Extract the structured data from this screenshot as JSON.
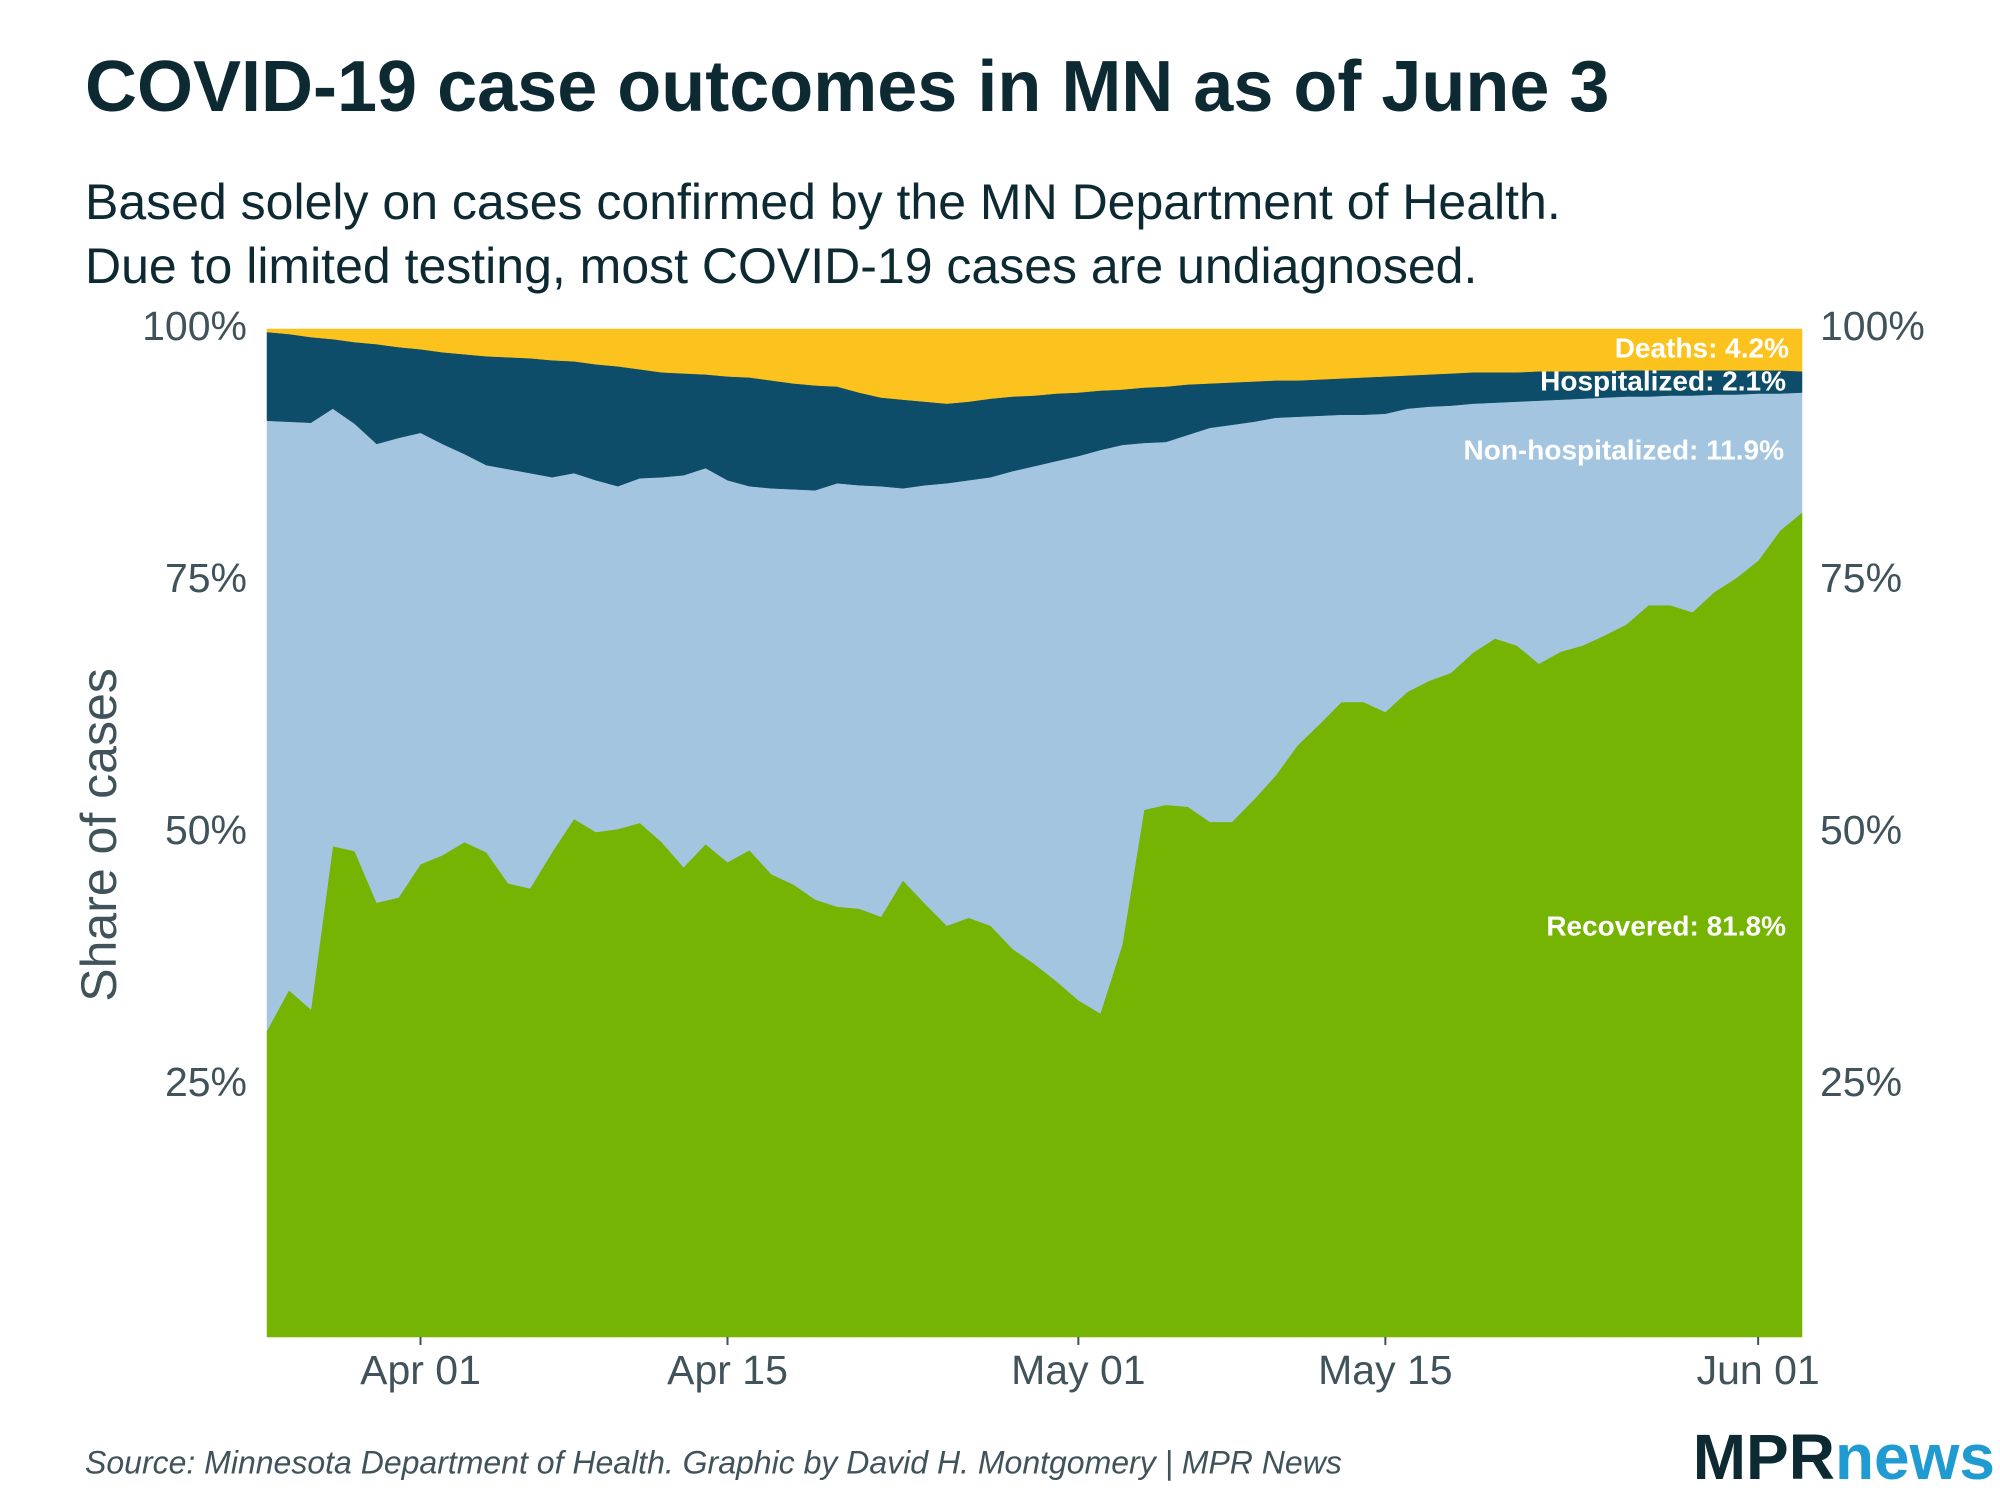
{
  "chart_data": {
    "type": "stacked-area",
    "title": "COVID-19 case outcomes in MN as of June 3",
    "subtitle": [
      "Based solely on cases confirmed by the MN Department of Health.",
      "Due to limited testing, most COVID-19 cases are undiagnosed."
    ],
    "y_label": "Share of cases",
    "source": "Source: Minnesota Department of Health. Graphic by David H. Montgomery | MPR News",
    "logo": [
      "MPR",
      "news"
    ],
    "categories": [
      "Mar 25",
      "Mar 26",
      "Mar 27",
      "Mar 28",
      "Mar 29",
      "Mar 30",
      "Mar 31",
      "Apr 01",
      "Apr 02",
      "Apr 03",
      "Apr 04",
      "Apr 05",
      "Apr 06",
      "Apr 07",
      "Apr 08",
      "Apr 09",
      "Apr 10",
      "Apr 11",
      "Apr 12",
      "Apr 13",
      "Apr 14",
      "Apr 15",
      "Apr 16",
      "Apr 17",
      "Apr 18",
      "Apr 19",
      "Apr 20",
      "Apr 21",
      "Apr 22",
      "Apr 23",
      "Apr 24",
      "Apr 25",
      "Apr 26",
      "Apr 27",
      "Apr 28",
      "Apr 29",
      "Apr 30",
      "May 01",
      "May 02",
      "May 03",
      "May 04",
      "May 05",
      "May 06",
      "May 07",
      "May 08",
      "May 09",
      "May 10",
      "May 11",
      "May 12",
      "May 13",
      "May 14",
      "May 15",
      "May 16",
      "May 17",
      "May 18",
      "May 19",
      "May 20",
      "May 21",
      "May 22",
      "May 23",
      "May 24",
      "May 25",
      "May 26",
      "May 27",
      "May 28",
      "May 29",
      "May 30",
      "May 31",
      "Jun 01",
      "Jun 02",
      "Jun 03"
    ],
    "xticks": [
      "Apr 01",
      "Apr 15",
      "May 01",
      "May 15",
      "Jun 01"
    ],
    "ylim": [
      0,
      100
    ],
    "yticks": [
      {
        "value": 25,
        "label": "25%"
      },
      {
        "value": 50,
        "label": "50%"
      },
      {
        "value": 75,
        "label": "75%"
      },
      {
        "value": 100,
        "label": "100%"
      }
    ],
    "series": [
      {
        "name": "Recovered",
        "color": "#76b404",
        "values": [
          30.4,
          34.4,
          32.5,
          48.7,
          48.2,
          43.1,
          43.6,
          46.9,
          47.8,
          49.1,
          48.1,
          45.0,
          44.5,
          48.1,
          51.4,
          50.1,
          50.4,
          51.0,
          49.1,
          46.6,
          48.9,
          47.1,
          48.3,
          45.9,
          44.9,
          43.4,
          42.7,
          42.5,
          41.7,
          45.3,
          43.0,
          40.8,
          41.6,
          40.8,
          38.5,
          37.0,
          35.3,
          33.4,
          32.1,
          38.9,
          52.3,
          52.8,
          52.6,
          51.1,
          51.1,
          53.3,
          55.7,
          58.7,
          60.8,
          63.0,
          63.0,
          62.0,
          64.0,
          65.1,
          65.9,
          67.9,
          69.3,
          68.6,
          66.8,
          68.0,
          68.6,
          69.6,
          70.7,
          72.6,
          72.6,
          71.9,
          73.9,
          75.3,
          77.0,
          80.0,
          81.8
        ]
      },
      {
        "name": "Non-hospitalized",
        "color": "#a3c5e0",
        "values": [
          60.5,
          56.4,
          58.2,
          43.4,
          42.4,
          45.5,
          45.6,
          42.8,
          40.8,
          38.5,
          38.4,
          41.1,
          41.2,
          37.2,
          34.3,
          34.9,
          34.0,
          34.2,
          36.2,
          38.9,
          37.3,
          37.9,
          36.1,
          38.3,
          39.2,
          40.6,
          42.0,
          42.0,
          42.7,
          38.9,
          41.5,
          43.9,
          43.4,
          44.5,
          47.4,
          49.4,
          51.6,
          54.0,
          55.9,
          49.6,
          36.4,
          36.0,
          36.9,
          39.1,
          39.4,
          37.5,
          35.5,
          32.6,
          30.6,
          28.5,
          28.5,
          29.6,
          28.1,
          27.2,
          26.5,
          24.7,
          23.4,
          24.2,
          26.1,
          25.0,
          24.5,
          23.6,
          22.6,
          20.7,
          20.8,
          21.5,
          19.6,
          18.2,
          16.6,
          13.6,
          11.9
        ]
      },
      {
        "name": "Hospitalized",
        "color": "#0e4d69",
        "values": [
          8.8,
          8.7,
          8.5,
          6.9,
          8.1,
          9.9,
          9.0,
          8.3,
          9.1,
          9.9,
          10.8,
          11.1,
          11.4,
          11.6,
          11.1,
          11.5,
          11.9,
          10.8,
          10.4,
          10.1,
          9.3,
          10.3,
          10.8,
          10.7,
          10.5,
          10.4,
          9.6,
          9.2,
          8.8,
          8.8,
          8.3,
          7.9,
          7.8,
          7.8,
          7.4,
          7.0,
          6.7,
          6.3,
          5.9,
          5.5,
          5.5,
          5.5,
          5.0,
          4.4,
          4.2,
          4.0,
          3.7,
          3.6,
          3.6,
          3.6,
          3.7,
          3.7,
          3.3,
          3.2,
          3.2,
          3.1,
          3.0,
          2.9,
          2.9,
          2.8,
          2.7,
          2.6,
          2.6,
          2.6,
          2.5,
          2.5,
          2.4,
          2.4,
          2.3,
          2.3,
          2.1
        ]
      },
      {
        "name": "Deaths",
        "color": "#fcc21d",
        "values": [
          0.3,
          0.5,
          0.8,
          1.0,
          1.3,
          1.5,
          1.8,
          2.0,
          2.3,
          2.5,
          2.7,
          2.8,
          2.9,
          3.1,
          3.2,
          3.5,
          3.7,
          4.0,
          4.3,
          4.4,
          4.5,
          4.7,
          4.8,
          5.1,
          5.4,
          5.6,
          5.7,
          6.3,
          6.8,
          7.0,
          7.2,
          7.4,
          7.2,
          6.9,
          6.7,
          6.6,
          6.4,
          6.3,
          6.1,
          6.0,
          5.8,
          5.7,
          5.5,
          5.4,
          5.3,
          5.2,
          5.1,
          5.1,
          5.0,
          4.9,
          4.8,
          4.7,
          4.6,
          4.5,
          4.4,
          4.3,
          4.3,
          4.3,
          4.2,
          4.2,
          4.2,
          4.2,
          4.1,
          4.1,
          4.1,
          4.1,
          4.1,
          4.1,
          4.1,
          4.1,
          4.2
        ]
      }
    ],
    "annotations": [
      "Recovered: 81.8%",
      "Non-hospitalized: 11.9%",
      "Hospitalized: 2.1%",
      "Deaths: 4.2%"
    ]
  }
}
